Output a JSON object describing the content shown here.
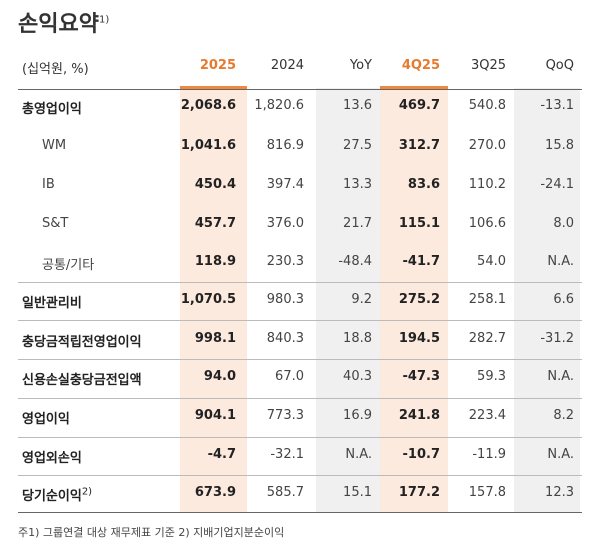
{
  "header": {
    "title": "손익요약",
    "note": "1)"
  },
  "table": {
    "columns": [
      "(십억원, %)",
      "2025",
      "2024",
      "YoY",
      "4Q25",
      "3Q25",
      "QoQ"
    ],
    "rows": [
      {
        "label": "총영업이익",
        "cells": [
          "2,068.6",
          "1,820.6",
          "13.6",
          "469.7",
          "540.8",
          "-13.1"
        ]
      },
      {
        "label": "WM",
        "cells": [
          "1,041.6",
          "816.9",
          "27.5",
          "312.7",
          "270.0",
          "15.8"
        ]
      },
      {
        "label": "IB",
        "cells": [
          "450.4",
          "397.4",
          "13.3",
          "83.6",
          "110.2",
          "-24.1"
        ]
      },
      {
        "label": "S&T",
        "cells": [
          "457.7",
          "376.0",
          "21.7",
          "115.1",
          "106.6",
          "8.0"
        ]
      },
      {
        "label": "공통/기타",
        "cells": [
          "118.9",
          "230.3",
          "-48.4",
          "-41.7",
          "54.0",
          "N.A."
        ]
      },
      {
        "label": "일반관리비",
        "cells": [
          "1,070.5",
          "980.3",
          "9.2",
          "275.2",
          "258.1",
          "6.6"
        ]
      },
      {
        "label": "충당금적립전영업이익",
        "cells": [
          "998.1",
          "840.3",
          "18.8",
          "194.5",
          "282.7",
          "-31.2"
        ]
      },
      {
        "label": "신용손실충당금전입액",
        "cells": [
          "94.0",
          "67.0",
          "40.3",
          "-47.3",
          "59.3",
          "N.A."
        ]
      },
      {
        "label": "영업이익",
        "cells": [
          "904.1",
          "773.3",
          "16.9",
          "241.8",
          "223.4",
          "8.2"
        ]
      },
      {
        "label": "영업외손익",
        "cells": [
          "-4.7",
          "-32.1",
          "N.A.",
          "-10.7",
          "-11.9",
          "N.A."
        ]
      },
      {
        "label": "당기순이익",
        "note": "2)",
        "cells": [
          "673.9",
          "585.7",
          "15.1",
          "177.2",
          "157.8",
          "12.3"
        ]
      }
    ]
  },
  "footnote": "주1) 그룹연결 대상 재무제표 기준   2) 지배기업지분순이익"
}
